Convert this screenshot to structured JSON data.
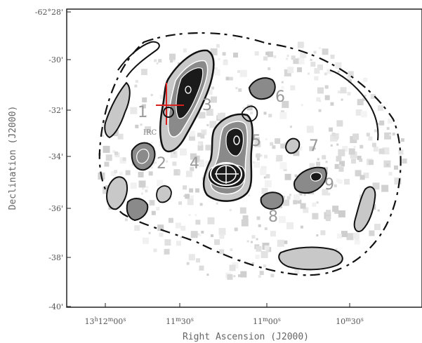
{
  "chart_data": {
    "type": "contour",
    "xlabel": "Right Ascension (J2000)",
    "ylabel": "Declination (J2000)",
    "x_ticks": [
      {
        "value": "13h12m00s",
        "h": "13",
        "hs": "h",
        "m": "12",
        "ms": "m",
        "s": "00",
        "ss": "s"
      },
      {
        "value": "11m30s",
        "h": "",
        "hs": "",
        "m": "11",
        "ms": "m",
        "s": "30",
        "ss": "s"
      },
      {
        "value": "11m00s",
        "h": "",
        "hs": "",
        "m": "11",
        "ms": "m",
        "s": "00",
        "ss": "s"
      },
      {
        "value": "10m30s",
        "h": "",
        "hs": "",
        "m": "10",
        "ms": "m",
        "s": "30",
        "ss": "s"
      }
    ],
    "y_ticks": [
      {
        "label": "-62°28'"
      },
      {
        "label": "-30'"
      },
      {
        "label": "-32'"
      },
      {
        "label": "-34'"
      },
      {
        "label": "-36'"
      },
      {
        "label": "-38'"
      },
      {
        "label": "-40'"
      }
    ],
    "clumps": [
      {
        "label": "1"
      },
      {
        "label": "2"
      },
      {
        "label": "3"
      },
      {
        "label": "4"
      },
      {
        "label": "5"
      },
      {
        "label": "6"
      },
      {
        "label": "7"
      },
      {
        "label": "8"
      },
      {
        "label": "9"
      }
    ],
    "source_marker": {
      "label": "IRC",
      "color": "#d9201f"
    },
    "contour_colors": {
      "outer": "#000000",
      "inner": "#ffffff",
      "fill_low": "#c8c8c8",
      "fill_mid": "#8a8a8a",
      "fill_high": "#1a1a1a"
    },
    "grid": false
  }
}
